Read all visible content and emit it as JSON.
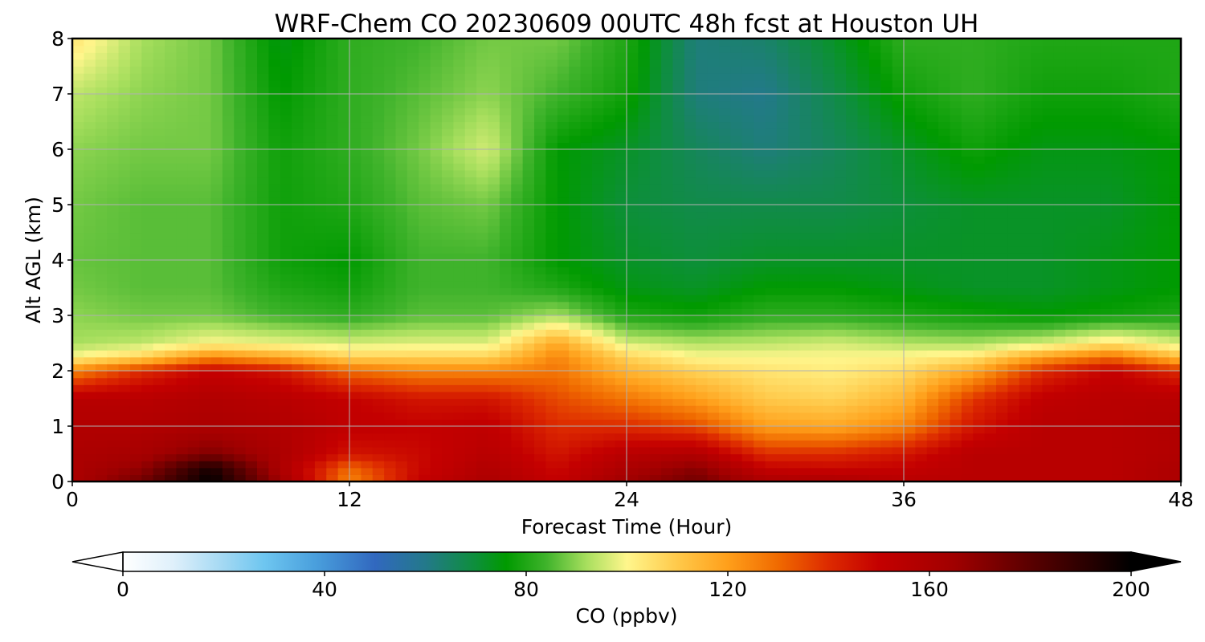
{
  "chart_data": {
    "type": "heatmap",
    "title": "WRF-Chem CO  20230609 00UTC 48h fcst at Houston UH",
    "xlabel": "Forecast Time (Hour)",
    "ylabel": "Alt AGL (km)",
    "xlim": [
      0,
      48
    ],
    "ylim": [
      0,
      8
    ],
    "xticks": [
      "0",
      "12",
      "24",
      "36",
      "48"
    ],
    "yticks": [
      "0",
      "1",
      "2",
      "3",
      "4",
      "5",
      "6",
      "7",
      "8"
    ],
    "grid": true,
    "x": [
      0,
      3,
      6,
      9,
      12,
      15,
      18,
      21,
      24,
      27,
      30,
      33,
      36,
      39,
      42,
      45,
      48
    ],
    "y": [
      0,
      0.25,
      0.5,
      1,
      1.5,
      2,
      2.25,
      2.5,
      3,
      3.5,
      4,
      5,
      6,
      7,
      8
    ],
    "z": [
      [
        160,
        175,
        200,
        165,
        125,
        150,
        160,
        150,
        165,
        175,
        160,
        160,
        155,
        155,
        155,
        155,
        160
      ],
      [
        160,
        168,
        195,
        160,
        130,
        148,
        158,
        148,
        160,
        170,
        150,
        148,
        150,
        155,
        155,
        155,
        160
      ],
      [
        160,
        162,
        172,
        160,
        145,
        148,
        155,
        145,
        155,
        158,
        140,
        140,
        145,
        155,
        155,
        155,
        158
      ],
      [
        158,
        158,
        160,
        158,
        152,
        150,
        152,
        140,
        140,
        135,
        120,
        118,
        125,
        145,
        155,
        155,
        158
      ],
      [
        155,
        155,
        158,
        155,
        150,
        145,
        145,
        135,
        128,
        120,
        110,
        108,
        115,
        138,
        152,
        155,
        155
      ],
      [
        125,
        140,
        150,
        145,
        130,
        125,
        125,
        128,
        115,
        108,
        104,
        102,
        106,
        118,
        140,
        150,
        140
      ],
      [
        100,
        108,
        125,
        118,
        108,
        108,
        108,
        125,
        108,
        100,
        100,
        100,
        101,
        104,
        120,
        130,
        112
      ],
      [
        92,
        94,
        100,
        98,
        96,
        97,
        97,
        118,
        96,
        93,
        94,
        96,
        93,
        92,
        96,
        104,
        96
      ],
      [
        90,
        88,
        88,
        84,
        82,
        86,
        86,
        92,
        80,
        78,
        82,
        82,
        80,
        78,
        76,
        78,
        80
      ],
      [
        88,
        86,
        86,
        80,
        78,
        84,
        84,
        80,
        74,
        72,
        76,
        76,
        74,
        72,
        72,
        74,
        76
      ],
      [
        87,
        86,
        86,
        78,
        76,
        84,
        84,
        76,
        72,
        70,
        72,
        72,
        72,
        72,
        72,
        74,
        76
      ],
      [
        88,
        86,
        86,
        78,
        80,
        86,
        88,
        76,
        70,
        68,
        68,
        68,
        70,
        72,
        72,
        72,
        76
      ],
      [
        90,
        88,
        88,
        78,
        82,
        88,
        96,
        76,
        72,
        66,
        62,
        66,
        72,
        78,
        74,
        74,
        76
      ],
      [
        94,
        90,
        88,
        76,
        82,
        86,
        90,
        84,
        78,
        62,
        60,
        68,
        78,
        82,
        78,
        78,
        80
      ],
      [
        104,
        92,
        88,
        74,
        82,
        84,
        88,
        88,
        80,
        62,
        64,
        72,
        82,
        82,
        80,
        80,
        80
      ]
    ],
    "colorbar": {
      "label": "CO  (ppbv)",
      "ticks": [
        "0",
        "40",
        "80",
        "120",
        "160",
        "200"
      ],
      "range": [
        0,
        200
      ],
      "extend": "both",
      "stops": [
        [
          0,
          "#ffffff"
        ],
        [
          10,
          "#dff0fb"
        ],
        [
          20,
          "#a2d8f3"
        ],
        [
          28,
          "#6ec6f0"
        ],
        [
          38,
          "#4aa0dd"
        ],
        [
          50,
          "#3168bf"
        ],
        [
          60,
          "#23798a"
        ],
        [
          70,
          "#0d8f3a"
        ],
        [
          76,
          "#009a00"
        ],
        [
          84,
          "#3fb32b"
        ],
        [
          92,
          "#a8df5e"
        ],
        [
          100,
          "#fff68c"
        ],
        [
          110,
          "#ffc94a"
        ],
        [
          120,
          "#ff9f1a"
        ],
        [
          130,
          "#f06a00"
        ],
        [
          140,
          "#dd2a00"
        ],
        [
          150,
          "#c40000"
        ],
        [
          165,
          "#a00000"
        ],
        [
          180,
          "#5a0000"
        ],
        [
          192,
          "#260000"
        ],
        [
          200,
          "#000000"
        ]
      ]
    }
  }
}
